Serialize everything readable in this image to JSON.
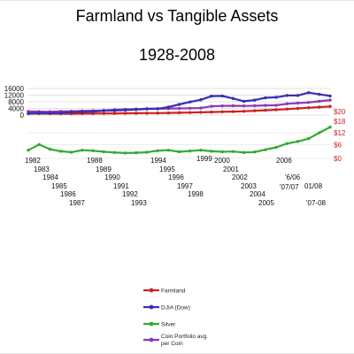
{
  "title": "Farmland vs Tangible Assets",
  "subtitle": "1928-2008",
  "chart_data": {
    "type": "line",
    "title": "Farmland vs Tangible Assets",
    "subtitle": "1928-2008",
    "left_axis": {
      "ticks": [
        "16000",
        "12000",
        "8000",
        "4000",
        "0"
      ],
      "ylim": [
        0,
        16000
      ]
    },
    "right_axis": {
      "ticks": [
        "$20",
        "$18",
        "$12",
        "$6",
        "$0"
      ]
    },
    "x_tick_labels": [
      "1982",
      "1983",
      "1984",
      "1985",
      "1986",
      "1987",
      "1988",
      "1989",
      "1990",
      "1991",
      "1992",
      "1993",
      "1994",
      "1995",
      "1996",
      "1997",
      "1998",
      "1999",
      "2000",
      "2001",
      "2002",
      "2003",
      "2004",
      "2005",
      "2006",
      "'6/06",
      "'07/07",
      "01/08",
      "'07-08"
    ],
    "grid": true,
    "legend_position": "bottom",
    "series": [
      {
        "name": "Farmland",
        "color": "#cc2222",
        "values": [
          800,
          900,
          850,
          800,
          800,
          850,
          900,
          950,
          1000,
          1050,
          1100,
          1150,
          1200,
          1300,
          1400,
          1500,
          1650,
          1800,
          1950,
          2100,
          2300,
          2600,
          2900,
          3200,
          3600,
          4000,
          4400,
          4800,
          5200
        ]
      },
      {
        "name": "DJIA (Dow)",
        "color": "#3a2fb0",
        "values": [
          1000,
          1200,
          1100,
          1300,
          1800,
          1900,
          2100,
          2600,
          2700,
          3000,
          3300,
          3700,
          3800,
          4800,
          6400,
          7900,
          9200,
          11400,
          11500,
          10000,
          8300,
          9000,
          10400,
          10700,
          11800,
          11800,
          13500,
          12500,
          11500
        ]
      },
      {
        "name": "Silver",
        "color": "#33aa33",
        "values": [
          3.2,
          5.4,
          3.6,
          2.8,
          2.4,
          3.2,
          3.0,
          2.6,
          2.3,
          2.1,
          2.2,
          2.4,
          3.0,
          3.2,
          2.6,
          2.9,
          3.2,
          2.8,
          2.6,
          2.7,
          2.3,
          2.5,
          3.4,
          4.3,
          5.8,
          6.6,
          7.7,
          10.0,
          12.2
        ]
      },
      {
        "name": "Coin Portfolio avg. per Coin",
        "color": "#8a3ab8",
        "values": [
          2200,
          2100,
          2000,
          2200,
          2300,
          2500,
          2600,
          2800,
          3200,
          3400,
          3600,
          3800,
          3800,
          3900,
          4000,
          4100,
          4200,
          5300,
          5500,
          5600,
          5500,
          5600,
          5800,
          5900,
          6800,
          7200,
          7600,
          8300,
          9000
        ]
      }
    ]
  }
}
